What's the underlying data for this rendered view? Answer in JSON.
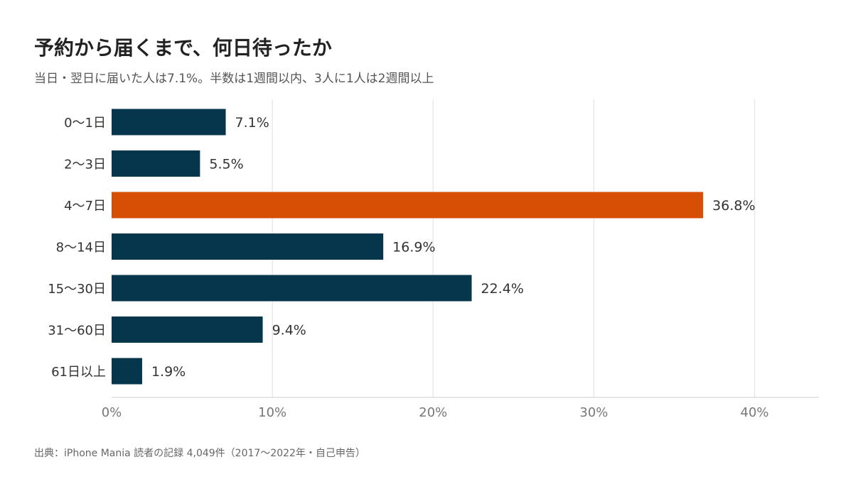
{
  "title": "予約から届くまで、何日待ったか",
  "subtitle": "当日・翌日に届いた人は7.1%。半数は1週間以内、3人に1人は2週間以上",
  "source": "出典：iPhone Mania 読者の記録 4,049件（2017〜2022年・自己申告）",
  "chart_data": {
    "type": "bar",
    "orientation": "horizontal",
    "categories": [
      "0〜1日",
      "2〜3日",
      "4〜7日",
      "8〜14日",
      "15〜30日",
      "31〜60日",
      "61日以上"
    ],
    "values": [
      7.1,
      5.5,
      36.8,
      16.9,
      22.4,
      9.4,
      1.9
    ],
    "value_labels": [
      "7.1%",
      "5.5%",
      "36.8%",
      "16.9%",
      "22.4%",
      "9.4%",
      "1.9%"
    ],
    "highlight_index": 2,
    "xlim": [
      0,
      44
    ],
    "xticks": [
      0,
      10,
      20,
      30,
      40
    ],
    "xtick_labels": [
      "0%",
      "10%",
      "20%",
      "30%",
      "40%"
    ],
    "grid": "vertical",
    "colors": {
      "bar": "#05364c",
      "highlight": "#d64f04",
      "grid": "#e4e4e4",
      "axis": "#cccccc"
    }
  }
}
